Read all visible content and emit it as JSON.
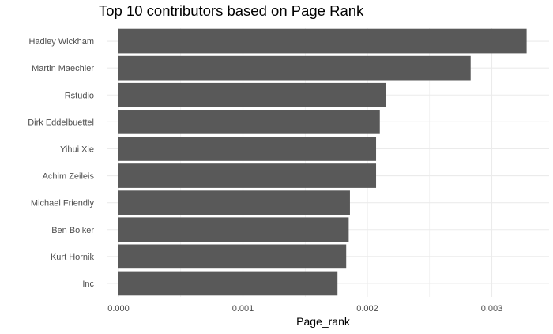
{
  "chart_data": {
    "type": "bar",
    "orientation": "horizontal",
    "title": "Top 10 contributors based on Page Rank",
    "xlabel": "Page_rank",
    "ylabel": "",
    "categories": [
      "Hadley Wickham",
      "Martin Maechler",
      "Rstudio",
      "Dirk Eddelbuettel",
      "Yihui Xie",
      "Achim Zeileis",
      "Michael Friendly",
      "Ben Bolker",
      "Kurt Hornik",
      "Inc"
    ],
    "values": [
      0.00328,
      0.00283,
      0.00215,
      0.0021,
      0.00207,
      0.00207,
      0.00186,
      0.00185,
      0.00183,
      0.00176
    ],
    "xlim": [
      0,
      0.0034
    ],
    "xticks": [
      0.0,
      0.001,
      0.002,
      0.003
    ],
    "xtick_labels": [
      "0.000",
      "0.001",
      "0.002",
      "0.003"
    ],
    "grid": true,
    "legend": "none",
    "bar_color": "#595959",
    "grid_color": "#ebebeb"
  }
}
